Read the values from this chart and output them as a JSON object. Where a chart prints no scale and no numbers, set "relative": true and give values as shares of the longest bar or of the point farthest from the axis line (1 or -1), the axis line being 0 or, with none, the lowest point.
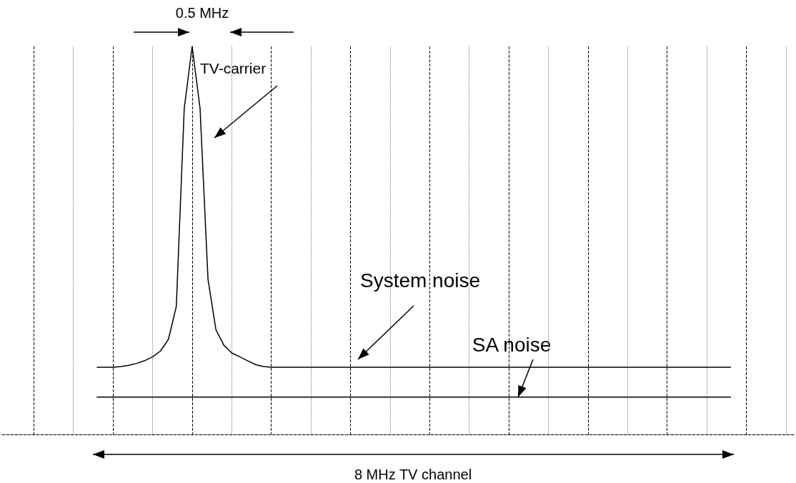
{
  "chart_data": {
    "type": "line",
    "relative": true,
    "categories": [
      null,
      null,
      null,
      null,
      null,
      null,
      null,
      null,
      null,
      null,
      null,
      null,
      null,
      null,
      null,
      null,
      null,
      null,
      null,
      null,
      null,
      null,
      null,
      null,
      null,
      null,
      null,
      null,
      null,
      null,
      null,
      null,
      null,
      null,
      null,
      null,
      null,
      null,
      null,
      null,
      null,
      null,
      null,
      null,
      null,
      null,
      null,
      null,
      null,
      null,
      null,
      null,
      null,
      null,
      null,
      null,
      null,
      null,
      null,
      null,
      null,
      null,
      null,
      null,
      null,
      null,
      null,
      null,
      null,
      null,
      null,
      null,
      null,
      null,
      null,
      null,
      null,
      null,
      null,
      null,
      null,
      null,
      null,
      null,
      null,
      null,
      null,
      null,
      null,
      null,
      null,
      null,
      null,
      null,
      null,
      null,
      null,
      null,
      null,
      null,
      null
    ],
    "grid": "x",
    "marker": "none",
    "line_style": "solid",
    "series": [
      {
        "color": "#000000",
        "values": [
          null,
          null,
          null,
          null,
          null,
          null,
          null,
          null,
          null,
          null,
          null,
          null,
          0.173,
          0.173,
          0.173,
          0.175,
          0.178,
          0.183,
          0.19,
          0.2,
          0.215,
          0.245,
          0.33,
          0.84,
          1,
          0.84,
          0.4,
          0.27,
          0.23,
          0.21,
          0.2,
          0.19,
          0.18,
          0.175,
          0.173,
          0.173,
          0.173,
          0.173,
          0.173,
          0.173,
          0.173,
          0.173,
          0.173,
          0.173,
          0.173,
          0.173,
          0.173,
          0.173,
          0.173,
          0.173,
          0.173,
          0.173,
          0.173,
          0.173,
          0.173,
          0.173,
          0.173,
          0.173,
          0.173,
          0.173,
          0.173,
          0.173,
          0.173,
          0.173,
          0.173,
          0.173,
          0.173,
          0.173,
          0.173,
          0.173,
          0.173,
          0.173,
          0.173,
          0.173,
          0.173,
          0.173,
          0.173,
          0.173,
          0.173,
          0.173,
          0.173,
          0.173,
          0.173,
          0.173,
          0.173,
          0.173,
          0.173,
          0.173,
          0.173,
          0.173,
          0.173,
          0.173,
          0.173,
          null,
          null,
          null,
          null,
          null,
          null,
          null,
          null
        ]
      },
      {
        "color": "#000000",
        "values": [
          null,
          null,
          null,
          null,
          null,
          null,
          null,
          null,
          null,
          null,
          null,
          null,
          0.096,
          0.096,
          0.096,
          0.096,
          0.096,
          0.096,
          0.096,
          0.096,
          0.096,
          0.096,
          0.096,
          0.096,
          0.096,
          0.096,
          0.096,
          0.096,
          0.096,
          0.096,
          0.096,
          0.096,
          0.096,
          0.096,
          0.096,
          0.096,
          0.096,
          0.096,
          0.096,
          0.096,
          0.096,
          0.096,
          0.096,
          0.096,
          0.096,
          0.096,
          0.096,
          0.096,
          0.096,
          0.096,
          0.096,
          0.096,
          0.096,
          0.096,
          0.096,
          0.096,
          0.096,
          0.096,
          0.096,
          0.096,
          0.096,
          0.096,
          0.096,
          0.096,
          0.096,
          0.096,
          0.096,
          0.096,
          0.096,
          0.096,
          0.096,
          0.096,
          0.096,
          0.096,
          0.096,
          0.096,
          0.096,
          0.096,
          0.096,
          0.096,
          0.096,
          0.096,
          0.096,
          0.096,
          0.096,
          0.096,
          0.096,
          0.096,
          0.096,
          0.096,
          0.096,
          0.096,
          0.096,
          null,
          null,
          null,
          null,
          null,
          null,
          null,
          null
        ]
      }
    ],
    "annotations": [
      "0.5 MHz",
      "TV-carrier",
      "System noise",
      "SA noise",
      "8 MHz TV channel"
    ]
  }
}
